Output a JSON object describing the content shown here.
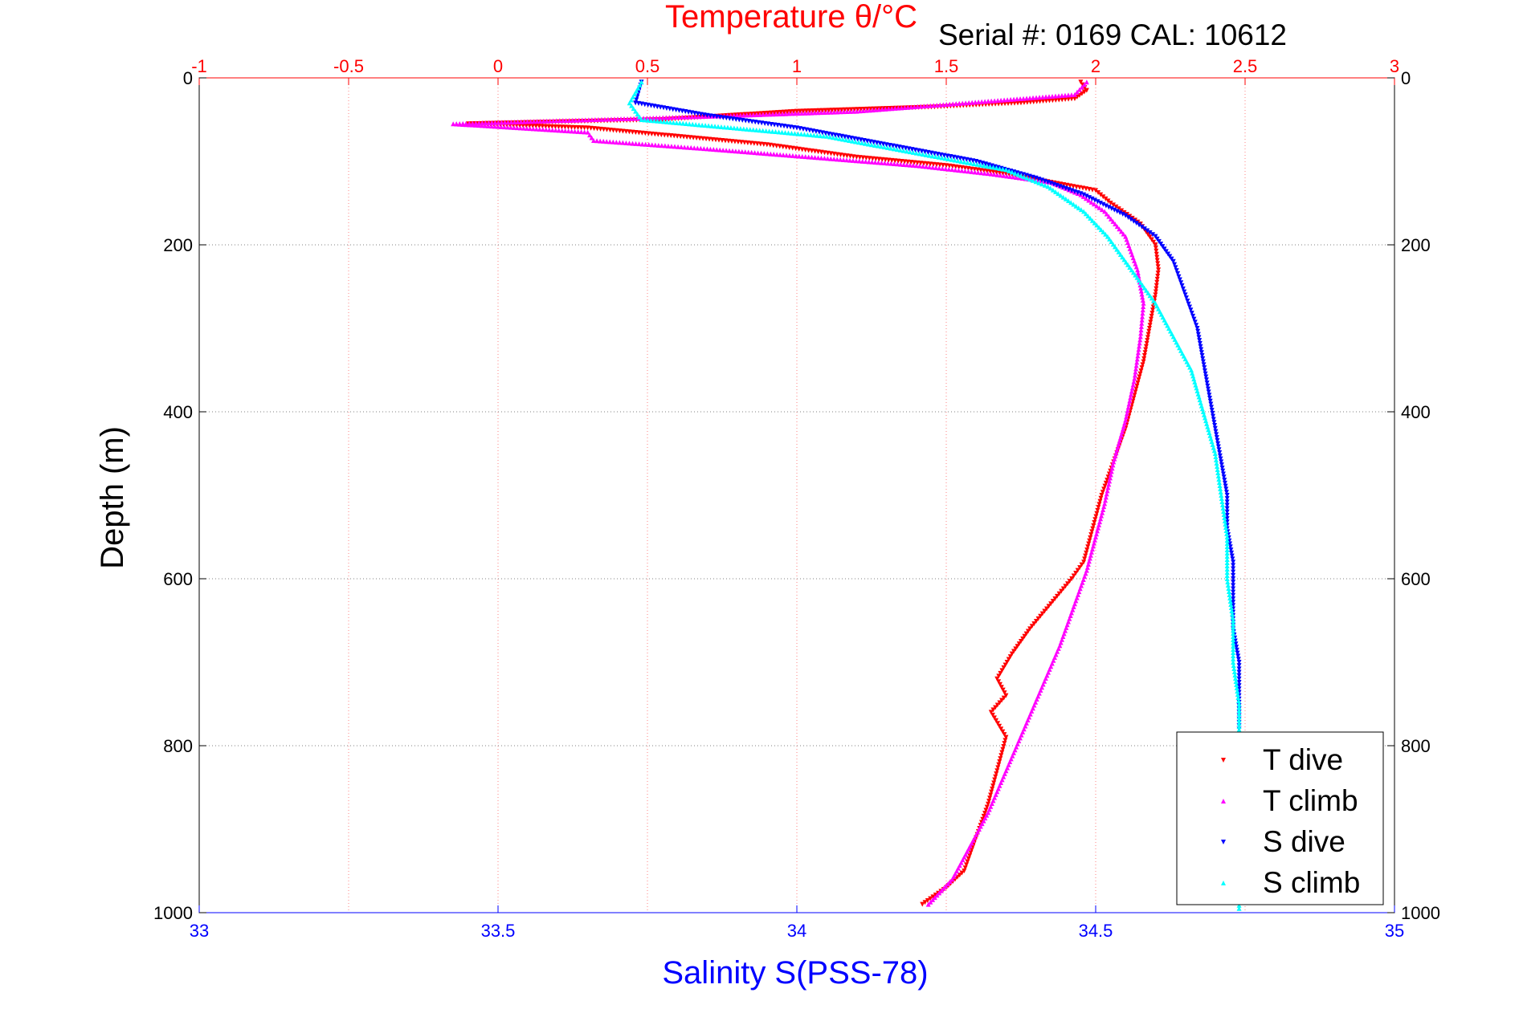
{
  "chart_data": {
    "type": "scatter",
    "title": "Temperature θ/°C",
    "subtitle": "Serial #: 0169 CAL: 10612",
    "ylabel": "Depth (m)",
    "xlabel": "Salinity S(PSS-78)",
    "top_axis": {
      "label": "Temperature θ/°C",
      "range": [
        -1,
        3
      ],
      "ticks": [
        -1,
        -0.5,
        0,
        0.5,
        1,
        1.5,
        2,
        2.5,
        3
      ],
      "tick_labels": [
        "-1",
        "-0.5",
        "0",
        "0.5",
        "1",
        "1.5",
        "2",
        "2.5",
        "3"
      ],
      "color": "#ff0000"
    },
    "bottom_axis": {
      "label": "Salinity S(PSS-78)",
      "range": [
        33,
        35
      ],
      "ticks": [
        33,
        33.5,
        34,
        34.5,
        35
      ],
      "tick_labels": [
        "33",
        "33.5",
        "34",
        "34.5",
        "35"
      ],
      "color": "#0000ff"
    },
    "y_axis": {
      "range": [
        0,
        1000
      ],
      "reversed": true,
      "ticks": [
        0,
        200,
        400,
        600,
        800,
        1000
      ],
      "tick_labels": [
        "0",
        "200",
        "400",
        "600",
        "800",
        "1000"
      ]
    },
    "grid": true,
    "legend_position": "bottom-right",
    "series": [
      {
        "name": "T dive",
        "axis": "top",
        "marker": "triangle-down",
        "color": "#ff0000",
        "points": [
          [
            1.95,
            5
          ],
          [
            1.97,
            15
          ],
          [
            1.93,
            25
          ],
          [
            1.75,
            30
          ],
          [
            1.45,
            35
          ],
          [
            1.0,
            40
          ],
          [
            0.55,
            50
          ],
          [
            -0.1,
            55
          ],
          [
            0.3,
            60
          ],
          [
            0.6,
            70
          ],
          [
            0.9,
            80
          ],
          [
            1.2,
            95
          ],
          [
            1.5,
            105
          ],
          [
            1.7,
            115
          ],
          [
            1.85,
            125
          ],
          [
            2.0,
            135
          ],
          [
            2.05,
            150
          ],
          [
            2.15,
            175
          ],
          [
            2.2,
            200
          ],
          [
            2.21,
            230
          ],
          [
            2.2,
            260
          ],
          [
            2.18,
            300
          ],
          [
            2.16,
            340
          ],
          [
            2.13,
            380
          ],
          [
            2.1,
            420
          ],
          [
            2.06,
            460
          ],
          [
            2.02,
            500
          ],
          [
            1.99,
            540
          ],
          [
            1.96,
            580
          ],
          [
            1.92,
            600
          ],
          [
            1.85,
            630
          ],
          [
            1.78,
            660
          ],
          [
            1.72,
            690
          ],
          [
            1.67,
            720
          ],
          [
            1.7,
            740
          ],
          [
            1.65,
            760
          ],
          [
            1.7,
            790
          ],
          [
            1.67,
            830
          ],
          [
            1.64,
            870
          ],
          [
            1.6,
            910
          ],
          [
            1.56,
            950
          ],
          [
            1.5,
            970
          ],
          [
            1.42,
            990
          ]
        ]
      },
      {
        "name": "T climb",
        "axis": "top",
        "marker": "triangle-up",
        "color": "#ff00ff",
        "points": [
          [
            1.97,
            5
          ],
          [
            1.93,
            20
          ],
          [
            1.2,
            40
          ],
          [
            0.8,
            45
          ],
          [
            -0.15,
            55
          ],
          [
            0.3,
            65
          ],
          [
            0.32,
            75
          ],
          [
            0.7,
            85
          ],
          [
            1.05,
            95
          ],
          [
            1.4,
            105
          ],
          [
            1.65,
            115
          ],
          [
            1.85,
            125
          ],
          [
            1.95,
            140
          ],
          [
            2.03,
            160
          ],
          [
            2.1,
            190
          ],
          [
            2.14,
            230
          ],
          [
            2.16,
            270
          ],
          [
            2.15,
            310
          ],
          [
            2.13,
            360
          ],
          [
            2.1,
            410
          ],
          [
            2.06,
            460
          ],
          [
            2.03,
            510
          ],
          [
            2.0,
            550
          ],
          [
            1.97,
            590
          ],
          [
            1.93,
            630
          ],
          [
            1.88,
            680
          ],
          [
            1.82,
            730
          ],
          [
            1.76,
            780
          ],
          [
            1.7,
            830
          ],
          [
            1.64,
            880
          ],
          [
            1.58,
            920
          ],
          [
            1.52,
            960
          ],
          [
            1.44,
            990
          ]
        ]
      },
      {
        "name": "S dive",
        "axis": "bottom",
        "marker": "triangle-down",
        "color": "#0000ff",
        "points": [
          [
            33.74,
            5
          ],
          [
            33.73,
            30
          ],
          [
            33.85,
            45
          ],
          [
            34.0,
            60
          ],
          [
            34.15,
            80
          ],
          [
            34.3,
            100
          ],
          [
            34.4,
            120
          ],
          [
            34.48,
            140
          ],
          [
            34.55,
            165
          ],
          [
            34.6,
            190
          ],
          [
            34.63,
            220
          ],
          [
            34.65,
            260
          ],
          [
            34.67,
            300
          ],
          [
            34.68,
            340
          ],
          [
            34.69,
            380
          ],
          [
            34.7,
            420
          ],
          [
            34.71,
            460
          ],
          [
            34.72,
            500
          ],
          [
            34.72,
            540
          ],
          [
            34.73,
            580
          ],
          [
            34.73,
            620
          ],
          [
            34.73,
            660
          ],
          [
            34.74,
            700
          ],
          [
            34.74,
            740
          ],
          [
            34.74,
            780
          ]
        ]
      },
      {
        "name": "S climb",
        "axis": "bottom",
        "marker": "triangle-up",
        "color": "#00ffff",
        "points": [
          [
            33.74,
            5
          ],
          [
            33.72,
            30
          ],
          [
            33.74,
            50
          ],
          [
            34.05,
            70
          ],
          [
            34.2,
            90
          ],
          [
            34.35,
            110
          ],
          [
            34.42,
            130
          ],
          [
            34.48,
            160
          ],
          [
            34.52,
            190
          ],
          [
            34.56,
            230
          ],
          [
            34.6,
            270
          ],
          [
            34.63,
            310
          ],
          [
            34.66,
            350
          ],
          [
            34.68,
            400
          ],
          [
            34.7,
            450
          ],
          [
            34.71,
            500
          ],
          [
            34.72,
            550
          ],
          [
            34.72,
            600
          ],
          [
            34.73,
            650
          ],
          [
            34.73,
            700
          ],
          [
            34.74,
            750
          ],
          [
            34.74,
            800
          ],
          [
            34.74,
            850
          ],
          [
            34.74,
            900
          ],
          [
            34.74,
            950
          ],
          [
            34.74,
            995
          ]
        ]
      }
    ]
  }
}
